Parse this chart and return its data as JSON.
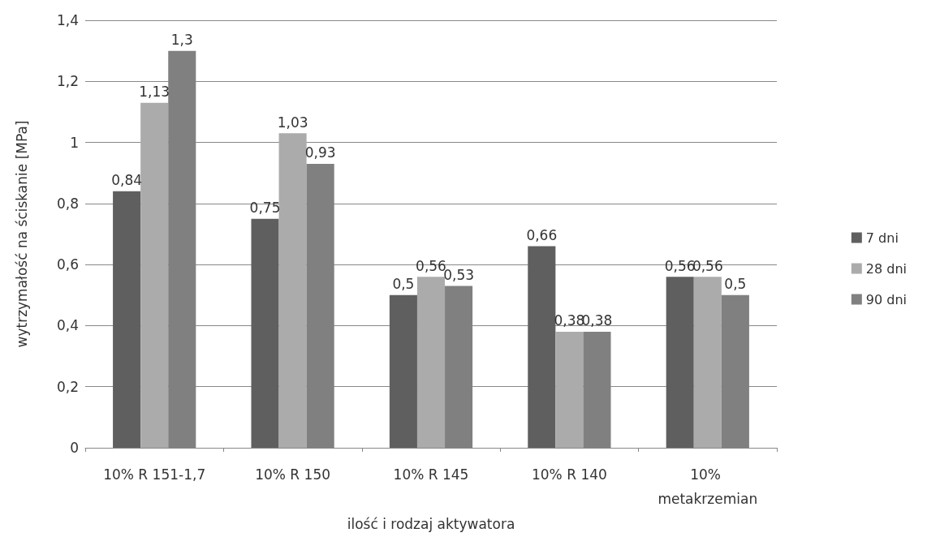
{
  "chart_data": {
    "type": "bar",
    "xlabel": "ilość i rodzaj aktywatora",
    "ylabel": "wytrzymałość na ściskanie [MPa]",
    "categories": [
      "10% R 151-1,7",
      "10% R 150",
      "10% R 145",
      "10% R 140",
      "10% metakrzemian"
    ],
    "series": [
      {
        "name": "7 dni",
        "color": "#5f5f5f",
        "values": [
          0.84,
          0.75,
          0.5,
          0.66,
          0.56
        ],
        "value_labels": [
          "0,84",
          "0,75",
          "0,5",
          "0,66",
          "0,56"
        ]
      },
      {
        "name": "28 dni",
        "color": "#ababab",
        "values": [
          1.13,
          1.03,
          0.56,
          0.38,
          0.56
        ],
        "value_labels": [
          "1,13",
          "1,03",
          "0,56",
          "0,38",
          "0,56"
        ]
      },
      {
        "name": "90 dni",
        "color": "#808080",
        "values": [
          1.3,
          0.93,
          0.53,
          0.38,
          0.5
        ],
        "value_labels": [
          "1,3",
          "0,93",
          "0,53",
          "0,38",
          "0,5"
        ]
      }
    ],
    "ylim": [
      0,
      1.4
    ],
    "yticks": [
      0,
      {
        "value": 0.2,
        "label": "0,2"
      },
      {
        "value": 0.4,
        "label": "0,4"
      },
      {
        "value": 0.6,
        "label": "0,6"
      },
      {
        "value": 0.8,
        "label": "0,8"
      },
      1,
      {
        "value": 1.2,
        "label": "1,2"
      },
      {
        "value": 1.4,
        "label": "1,4"
      }
    ],
    "grid": "y",
    "legend": "right"
  }
}
